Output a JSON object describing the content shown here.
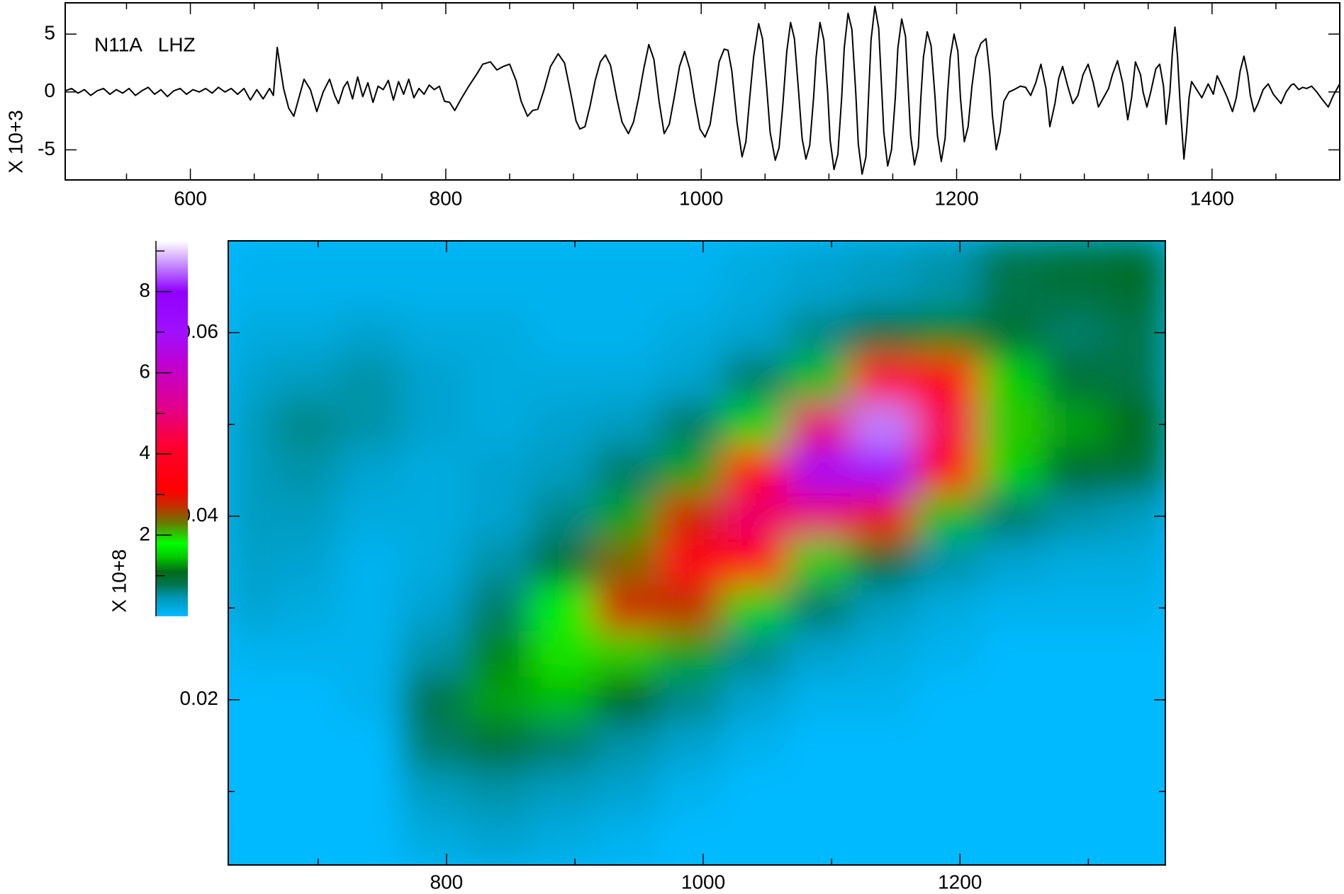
{
  "chart_data": [
    {
      "type": "line",
      "annotation": "N11A   LHZ",
      "ylabel": "X 10+3",
      "xlim": [
        502,
        1500
      ],
      "ylim": [
        -7.6,
        7.7
      ],
      "xticks": [
        600,
        800,
        1000,
        1200,
        1400
      ],
      "xminorticks": [
        550,
        650,
        700,
        750,
        850,
        900,
        950,
        1050,
        1100,
        1150,
        1250,
        1300,
        1350,
        1450
      ],
      "yticks": [
        -5,
        0,
        5
      ],
      "series": [
        {
          "color": "#000000",
          "x": [
            502,
            507,
            512,
            517,
            522,
            527,
            532,
            537,
            542,
            547,
            552,
            557,
            562,
            567,
            572,
            577,
            582,
            587,
            592,
            597,
            602,
            607,
            612,
            617,
            622,
            627,
            632,
            637,
            642,
            647,
            652,
            657,
            662,
            665,
            668,
            673,
            677,
            681,
            685,
            689,
            694,
            699,
            704,
            709,
            713,
            716,
            720,
            723,
            727,
            731,
            735,
            739,
            743,
            747,
            751,
            755,
            759,
            763,
            767,
            771,
            775,
            779,
            783,
            787,
            791,
            795,
            799,
            803,
            807,
            812,
            818,
            824,
            829,
            835,
            840,
            845,
            850,
            855,
            859,
            864,
            868,
            872,
            877,
            882,
            888,
            893,
            898,
            902,
            905,
            909,
            913,
            917,
            921,
            925,
            929,
            934,
            938,
            943,
            947,
            951,
            955,
            959,
            963,
            967,
            971,
            975,
            979,
            983,
            987,
            991,
            995,
            999,
            1003,
            1007,
            1011,
            1014,
            1018,
            1021,
            1024,
            1028,
            1032,
            1035,
            1038,
            1041,
            1045,
            1048,
            1051,
            1054,
            1058,
            1061,
            1064,
            1067,
            1070,
            1073,
            1076,
            1079,
            1082,
            1085,
            1088,
            1090,
            1093,
            1096,
            1099,
            1101,
            1104,
            1107,
            1110,
            1112,
            1115,
            1118,
            1121,
            1123,
            1126,
            1129,
            1131,
            1133,
            1136,
            1139,
            1141,
            1143,
            1146,
            1149,
            1152,
            1154,
            1157,
            1160,
            1162,
            1164,
            1167,
            1170,
            1172,
            1174,
            1177,
            1180,
            1183,
            1185,
            1188,
            1191,
            1193,
            1195,
            1198,
            1201,
            1203,
            1206,
            1209,
            1212,
            1215,
            1219,
            1223,
            1226,
            1228,
            1231,
            1234,
            1237,
            1241,
            1245,
            1250,
            1254,
            1258,
            1262,
            1266,
            1270,
            1273,
            1277,
            1280,
            1283,
            1287,
            1291,
            1295,
            1299,
            1303,
            1307,
            1311,
            1315,
            1319,
            1322,
            1326,
            1330,
            1334,
            1337,
            1340,
            1344,
            1346,
            1349,
            1352,
            1356,
            1359,
            1362,
            1364,
            1367,
            1369,
            1371,
            1373,
            1375,
            1378,
            1380,
            1382,
            1384,
            1388,
            1392,
            1397,
            1401,
            1404,
            1408,
            1412,
            1416,
            1419,
            1422,
            1425,
            1428,
            1430,
            1433,
            1436,
            1440,
            1444,
            1448,
            1451,
            1454,
            1458,
            1462,
            1464,
            1468,
            1471,
            1474,
            1478,
            1482,
            1486,
            1491,
            1495,
            1500
          ],
          "values": [
            0.1,
            0.3,
            -0.1,
            0.2,
            -0.3,
            0.1,
            0.3,
            -0.2,
            0.2,
            -0.1,
            0.3,
            -0.3,
            0.1,
            0.4,
            -0.2,
            0.2,
            -0.4,
            0.1,
            0.3,
            -0.2,
            0.2,
            0,
            0.3,
            -0.1,
            0.4,
            0,
            0.3,
            -0.2,
            0.3,
            -0.7,
            0.2,
            -0.6,
            0.3,
            -0.3,
            3.85,
            0.3,
            -1.4,
            -2.1,
            -0.5,
            1.1,
            0.2,
            -1.7,
            0,
            1.1,
            -0.3,
            -1.0,
            0.4,
            0.9,
            -0.6,
            1.3,
            -0.4,
            0.8,
            -0.9,
            0.5,
            0.2,
            1.0,
            -0.7,
            0.9,
            -0.2,
            1.1,
            -0.5,
            0.3,
            -0.2,
            0.6,
            0.2,
            0.5,
            -0.8,
            -0.9,
            -1.6,
            -0.6,
            0.5,
            1.5,
            2.4,
            2.6,
            1.9,
            2.2,
            2.4,
            1.0,
            -0.8,
            -2.1,
            -1.6,
            -1.5,
            0.2,
            2.2,
            3.3,
            2.5,
            -0.2,
            -2.5,
            -3.2,
            -3.0,
            -1.2,
            1.0,
            2.6,
            3.2,
            2.3,
            -0.6,
            -2.6,
            -3.6,
            -2.6,
            -0.5,
            2.0,
            4.1,
            2.8,
            -0.8,
            -3.6,
            -2.8,
            -0.4,
            2.2,
            3.5,
            2.0,
            -0.8,
            -3.2,
            -3.9,
            -2.8,
            0.2,
            2.6,
            3.7,
            3.6,
            1.8,
            -2.6,
            -5.6,
            -4.3,
            -0.5,
            3.0,
            5.9,
            4.6,
            0.8,
            -3.5,
            -5.9,
            -4.8,
            -1.0,
            3.5,
            6.0,
            4.6,
            0.4,
            -4.0,
            -5.8,
            -4.6,
            -0.5,
            3.0,
            6.0,
            4.5,
            0,
            -4.2,
            -6.7,
            -5.4,
            -0.5,
            3.8,
            6.8,
            5.4,
            0,
            -4.5,
            -7.1,
            -5.6,
            -0.5,
            4.5,
            7.4,
            5.5,
            1.0,
            -3.5,
            -6.4,
            -5.0,
            -0.5,
            3.8,
            6.3,
            4.8,
            0.5,
            -3.8,
            -6.3,
            -4.8,
            -0.5,
            3.0,
            5.2,
            4.0,
            -0.3,
            -3.8,
            -6.0,
            -4.0,
            0,
            3.0,
            5.0,
            3.5,
            -0.5,
            -4.3,
            -3.0,
            0.5,
            3.0,
            4.2,
            4.6,
            1.5,
            -2.0,
            -5.0,
            -3.5,
            -0.8,
            0,
            0.2,
            0.5,
            0.4,
            -0.3,
            0.8,
            2.4,
            0.3,
            -3.0,
            -1.0,
            1.2,
            2.2,
            0.5,
            -1.0,
            -0.3,
            1.5,
            2.4,
            0.8,
            -1.3,
            -0.5,
            0.3,
            1.5,
            2.7,
            0.8,
            -2.4,
            -0.5,
            2.6,
            1.5,
            0,
            -1.3,
            0,
            2.0,
            2.4,
            0.5,
            -2.8,
            0,
            3.5,
            5.6,
            3.0,
            -1.0,
            -5.8,
            -3.5,
            -0.5,
            0.9,
            0.2,
            -0.5,
            0.7,
            -0.2,
            1.4,
            0.5,
            -0.5,
            -1.7,
            -0.5,
            1.8,
            3.1,
            1.5,
            -0.3,
            -1.7,
            -1.0,
            0.2,
            0.7,
            -0.2,
            -0.6,
            -1.0,
            0,
            0.6,
            0.7,
            0.2,
            0.4,
            0.3,
            0.5,
            0,
            -0.6,
            -1.3,
            -0.3,
            0.7
          ]
        }
      ]
    },
    {
      "type": "heatmap",
      "xlim": [
        630,
        1360
      ],
      "ylim": [
        0.002,
        0.07
      ],
      "xticks": [
        800,
        1000,
        1200
      ],
      "xminorticks": [
        700,
        900,
        1100,
        1300
      ],
      "yticks": [
        0.02,
        0.04,
        0.06
      ],
      "yminorticks": [
        0.01,
        0.03,
        0.05,
        0.07
      ],
      "x": [
        640,
        690,
        740,
        790,
        840,
        890,
        940,
        990,
        1040,
        1090,
        1140,
        1190,
        1240,
        1290,
        1340
      ],
      "y": [
        0.065,
        0.06,
        0.055,
        0.05,
        0.045,
        0.04,
        0.035,
        0.03,
        0.025,
        0.02,
        0.015,
        0.01,
        0.005
      ],
      "z": [
        [
          0.1,
          0.1,
          0.1,
          0.1,
          0.1,
          0.1,
          0.1,
          0.1,
          0.2,
          0.3,
          0.4,
          0.5,
          0.8,
          0.9,
          1.0
        ],
        [
          0.2,
          0.2,
          0.3,
          0.2,
          0.2,
          0.1,
          0.1,
          0.2,
          0.3,
          0.6,
          0.9,
          1.2,
          0.9,
          0.7,
          0.8
        ],
        [
          0.3,
          0.4,
          0.5,
          0.3,
          0.2,
          0.2,
          0.2,
          0.3,
          0.7,
          1.4,
          4.0,
          3.3,
          1.5,
          0.9,
          0.8
        ],
        [
          0.4,
          0.6,
          0.5,
          0.3,
          0.2,
          0.3,
          0.4,
          0.7,
          1.5,
          4.9,
          8.6,
          4.5,
          2.0,
          1.3,
          1.1
        ],
        [
          0.4,
          0.5,
          0.3,
          0.2,
          0.3,
          0.4,
          0.7,
          1.3,
          3.5,
          6.8,
          7.0,
          3.3,
          1.5,
          1.0,
          0.9
        ],
        [
          0.4,
          0.4,
          0.2,
          0.2,
          0.3,
          0.6,
          1.3,
          2.8,
          4.8,
          4.9,
          3.0,
          1.4,
          0.7,
          0.5,
          0.4
        ],
        [
          0.35,
          0.3,
          0.1,
          0.2,
          0.5,
          0.9,
          2.4,
          3.6,
          3.5,
          2.0,
          1.0,
          0.5,
          0.3,
          0.2,
          0.2
        ],
        [
          0.3,
          0.2,
          0.1,
          0.3,
          0.7,
          1.7,
          2.8,
          2.7,
          1.5,
          0.7,
          0.4,
          0.2,
          0.1,
          0.1,
          0.1
        ],
        [
          0.1,
          0.1,
          0.1,
          0.5,
          1.2,
          1.9,
          2.0,
          1.3,
          0.6,
          0.3,
          0.2,
          0.1,
          0,
          0,
          0
        ],
        [
          0,
          0,
          0.1,
          0.8,
          1.3,
          1.4,
          1.1,
          0.6,
          0.3,
          0.1,
          0.1,
          0,
          0,
          0,
          0
        ],
        [
          0,
          0,
          0,
          0.7,
          0.9,
          0.7,
          0.5,
          0.3,
          0.1,
          0,
          0,
          0,
          0,
          0,
          0
        ],
        [
          0,
          0,
          0,
          0.4,
          0.5,
          0.4,
          0.3,
          0.1,
          0,
          0,
          0,
          0,
          0,
          0,
          0
        ],
        [
          0,
          0,
          0,
          0.2,
          0.3,
          0.2,
          0.1,
          0,
          0,
          0,
          0,
          0,
          0,
          0,
          0
        ]
      ],
      "colorbar": {
        "label": "X 10+8",
        "lim": [
          0,
          9.25
        ],
        "ticks": [
          2,
          4,
          6,
          8
        ],
        "minorticks": [
          1,
          3,
          5,
          7,
          9
        ]
      },
      "colormap": [
        {
          "value": 0,
          "color": "#00baff"
        },
        {
          "value": 0.45,
          "color": "#0098b8"
        },
        {
          "value": 0.8,
          "color": "#00744a"
        },
        {
          "value": 1.1,
          "color": "#006a18"
        },
        {
          "value": 1.45,
          "color": "#00c800"
        },
        {
          "value": 1.8,
          "color": "#00ff00"
        },
        {
          "value": 2.3,
          "color": "#6a7a00"
        },
        {
          "value": 2.7,
          "color": "#c03000"
        },
        {
          "value": 3.1,
          "color": "#ff0000"
        },
        {
          "value": 4.2,
          "color": "#ff0030"
        },
        {
          "value": 5.2,
          "color": "#e00090"
        },
        {
          "value": 6.2,
          "color": "#c000d0"
        },
        {
          "value": 7.0,
          "color": "#a010ff"
        },
        {
          "value": 8.0,
          "color": "#9000ff"
        },
        {
          "value": 8.6,
          "color": "#c080ff"
        },
        {
          "value": 9.25,
          "color": "#ffffff"
        }
      ]
    }
  ]
}
